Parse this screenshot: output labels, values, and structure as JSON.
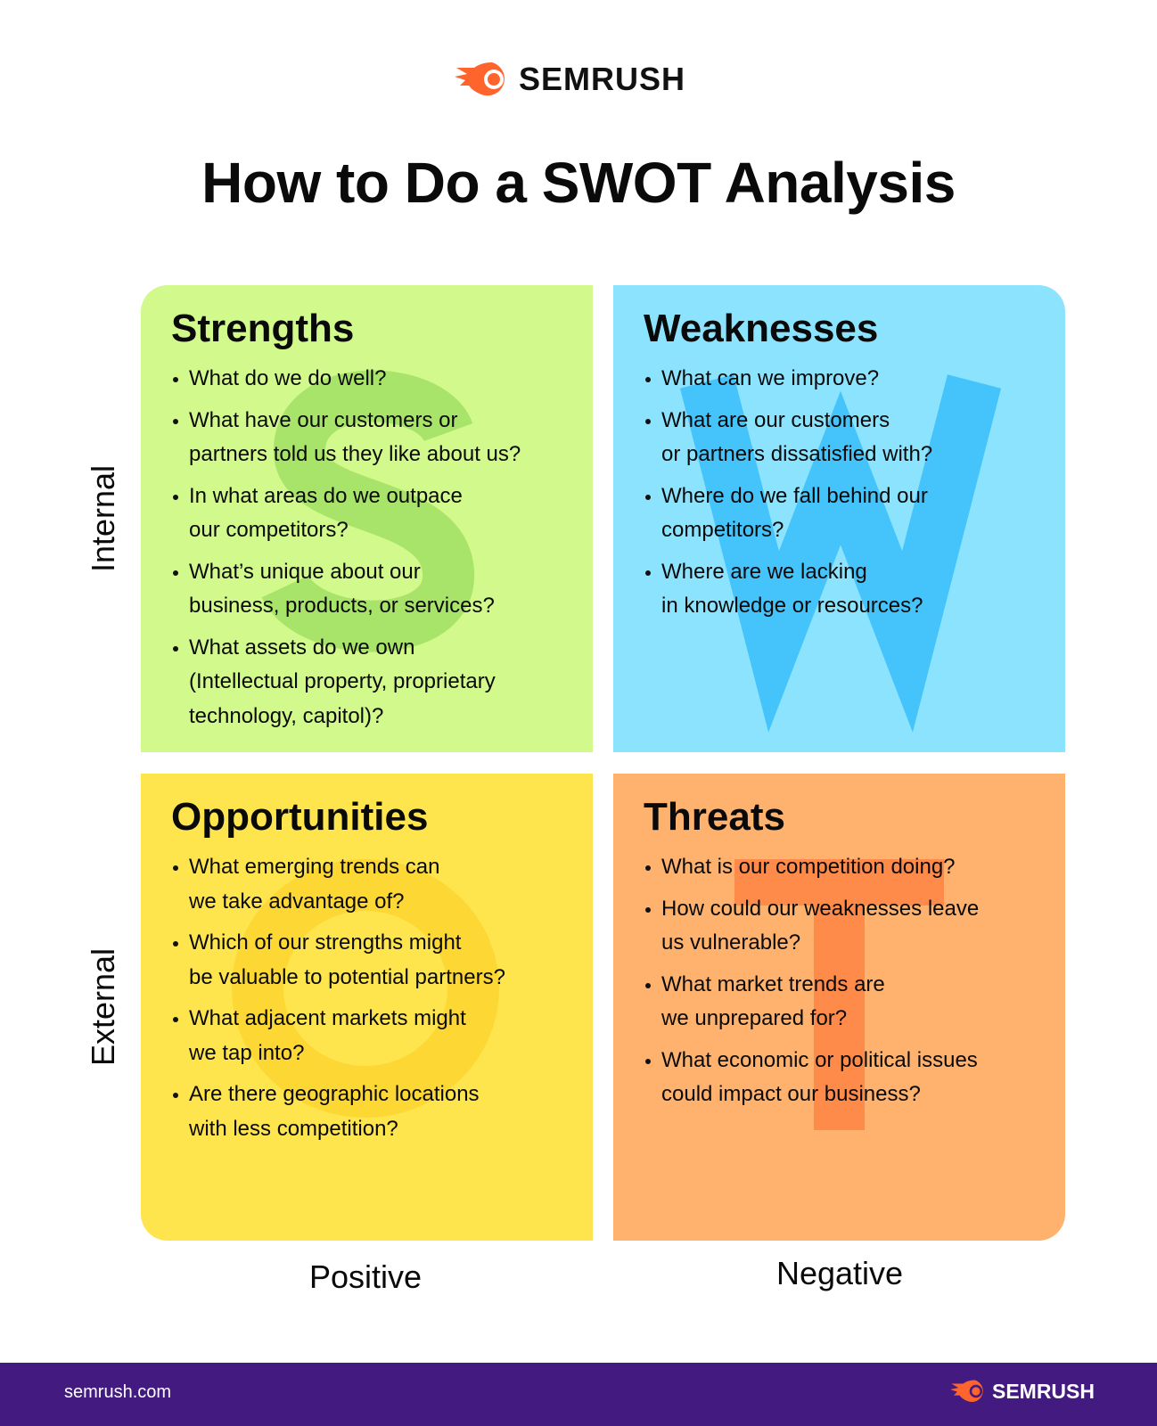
{
  "brand": {
    "name": "SEMRUSH",
    "accent": "#ff642d",
    "footer_bg": "#431a80"
  },
  "title": "How to Do a SWOT Analysis",
  "quadrants": {
    "strengths": {
      "heading": "Strengths",
      "letter": "S",
      "color": "#d2f98b",
      "items": [
        "What do we do well?",
        "What have our customers or\npartners told us they like about us?",
        "In what areas do we outpace\nour competitors?",
        "What’s unique about our\nbusiness, products, or services?",
        "What assets do we own\n(Intellectual property, proprietary\ntechnology, capitol)?"
      ]
    },
    "weaknesses": {
      "heading": "Weaknesses",
      "letter": "W",
      "color": "#8be3fe",
      "items": [
        "What can we improve?",
        "What are our customers\nor partners dissatisfied with?",
        "Where do we fall behind our\ncompetitors?",
        "Where are we lacking\nin knowledge or resources?"
      ]
    },
    "opportunities": {
      "heading": "Opportunities",
      "letter": "O",
      "color": "#fee54e",
      "items": [
        "What emerging trends can\nwe take advantage of?",
        "Which of our strengths might\nbe valuable to potential partners?",
        "What adjacent markets might\nwe tap into?",
        "Are there geographic locations\nwith less competition?"
      ]
    },
    "threats": {
      "heading": "Threats",
      "letter": "T",
      "color": "#feb26e",
      "items": [
        "What is our competition doing?",
        "How could our weaknesses leave\nus vulnerable?",
        "What market trends are\nwe unprepared for?",
        "What economic or political issues\ncould impact our business?"
      ]
    }
  },
  "axes": {
    "internal": "Internal",
    "external": "External",
    "positive": "Positive",
    "negative": "Negative"
  },
  "footer": {
    "url": "semrush.com",
    "logo": "SEMRUSH"
  }
}
